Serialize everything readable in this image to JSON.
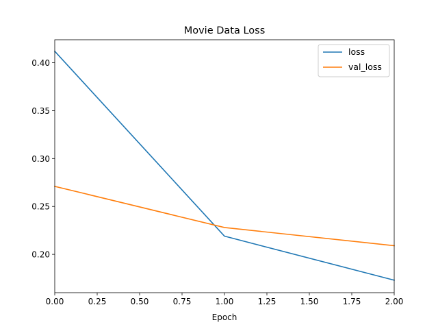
{
  "chart_data": {
    "type": "line",
    "title": "Movie Data Loss",
    "xlabel": "Epoch",
    "ylabel": "",
    "x": [
      0,
      1,
      2
    ],
    "series": [
      {
        "name": "loss",
        "values": [
          0.412,
          0.219,
          0.173
        ],
        "color": "#1f77b4"
      },
      {
        "name": "val_loss",
        "values": [
          0.271,
          0.228,
          0.209
        ],
        "color": "#ff7f0e"
      }
    ],
    "xlim": [
      0,
      2
    ],
    "ylim": [
      0.16,
      0.424
    ],
    "xticks": [
      0.0,
      0.25,
      0.5,
      0.75,
      1.0,
      1.25,
      1.5,
      1.75,
      2.0
    ],
    "xtick_labels": [
      "0.00",
      "0.25",
      "0.50",
      "0.75",
      "1.00",
      "1.25",
      "1.50",
      "1.75",
      "2.00"
    ],
    "yticks": [
      0.2,
      0.25,
      0.3,
      0.35,
      0.4
    ],
    "ytick_labels": [
      "0.20",
      "0.25",
      "0.30",
      "0.35",
      "0.40"
    ],
    "grid": false,
    "legend_position": "top-right"
  }
}
